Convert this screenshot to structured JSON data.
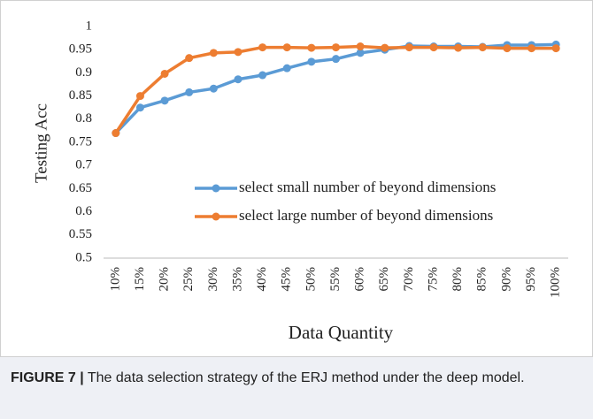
{
  "chart_data": {
    "type": "line",
    "x_label": "Data Quantity",
    "y_label": "Testing Acc",
    "categories": [
      "10%",
      "15%",
      "20%",
      "25%",
      "30%",
      "35%",
      "40%",
      "45%",
      "50%",
      "55%",
      "60%",
      "65%",
      "70%",
      "75%",
      "80%",
      "85%",
      "90%",
      "95%",
      "100%"
    ],
    "series": [
      {
        "name": "select small number of beyond dimensions",
        "color": "#5b9bd5",
        "values": [
          0.77,
          0.825,
          0.84,
          0.858,
          0.866,
          0.886,
          0.895,
          0.91,
          0.924,
          0.93,
          0.943,
          0.95,
          0.958,
          0.957,
          0.957,
          0.956,
          0.96,
          0.96,
          0.961
        ]
      },
      {
        "name": "select large number of beyond dimensions",
        "color": "#ed7d31",
        "values": [
          0.77,
          0.85,
          0.898,
          0.932,
          0.943,
          0.945,
          0.955,
          0.955,
          0.954,
          0.955,
          0.957,
          0.954,
          0.955,
          0.955,
          0.954,
          0.955,
          0.953,
          0.953,
          0.953
        ]
      }
    ],
    "ylim": [
      0.5,
      1
    ],
    "yticks": [
      0.5,
      0.55,
      0.6,
      0.65,
      0.7,
      0.75,
      0.8,
      0.85,
      0.9,
      0.95,
      1
    ],
    "grid": false
  },
  "caption": {
    "label": "FIGURE 7 |",
    "text": "The data selection strategy of the ERJ method under the deep model."
  }
}
